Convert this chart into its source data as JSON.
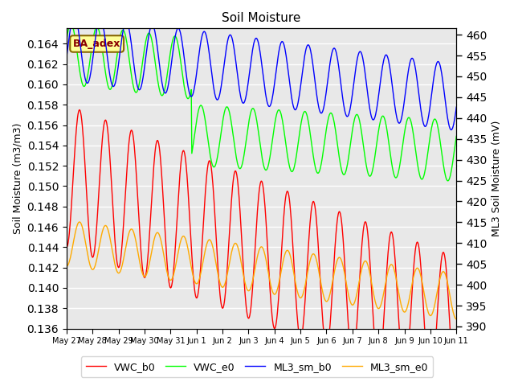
{
  "title": "Soil Moisture",
  "ylabel_left": "Soil Moisture (m3/m3)",
  "ylabel_right": "ML3 Soil Moisture (mV)",
  "ylim_left": [
    0.136,
    0.1655
  ],
  "ylim_right": [
    389.5,
    461.5
  ],
  "yticks_left": [
    0.136,
    0.138,
    0.14,
    0.142,
    0.144,
    0.146,
    0.148,
    0.15,
    0.152,
    0.154,
    0.156,
    0.158,
    0.16,
    0.162,
    0.164
  ],
  "yticks_right": [
    390,
    395,
    400,
    405,
    410,
    415,
    420,
    425,
    430,
    435,
    440,
    445,
    450,
    455,
    460
  ],
  "colors": {
    "VWC_b0": "#ff0000",
    "VWC_e0": "#00ff00",
    "ML3_sm_b0": "#0000ff",
    "ML3_sm_e0": "#ffaa00"
  },
  "bg_color": "#e8e8e8",
  "grid_color": "#ffffff",
  "annotation_text": "BA_adex",
  "annotation_bg": "#ffff99",
  "annotation_border": "#886600",
  "x_tick_labels": [
    "May 27",
    "May 28",
    "May 29",
    "May 30",
    "May 31",
    "Jun 1",
    "Jun 2",
    "Jun 3",
    "Jun 4",
    "Jun 5",
    "Jun 6",
    "Jun 7",
    "Jun 8",
    "Jun 9",
    "Jun 10",
    "Jun 11"
  ]
}
